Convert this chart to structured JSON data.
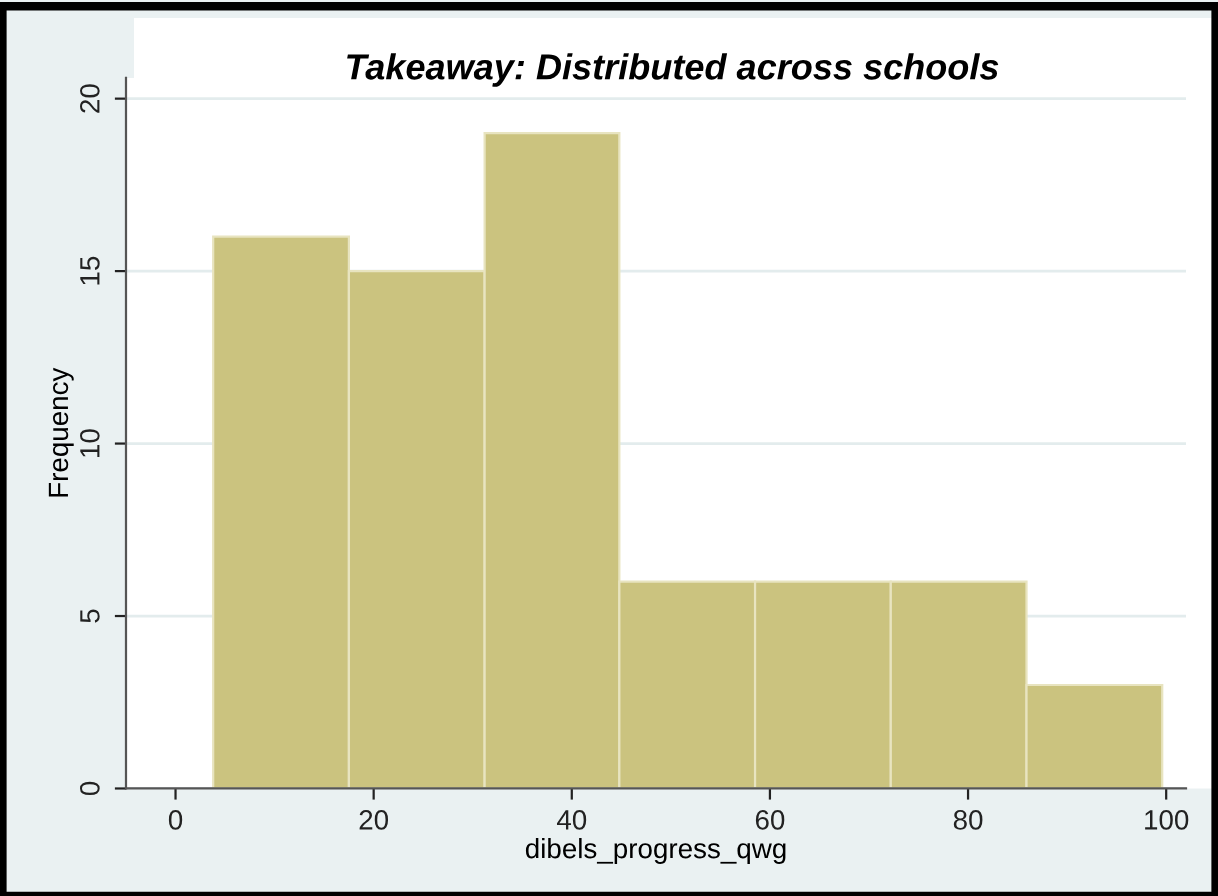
{
  "chart_data": {
    "type": "histogram",
    "title": "Takeaway: Distributed across schools",
    "xlabel": "dibels_progress_qwg",
    "ylabel": "Frequency",
    "bins": [
      3.8,
      17.5,
      31.2,
      44.8,
      58.5,
      72.2,
      85.9,
      99.6
    ],
    "values": [
      16,
      15,
      19,
      6,
      6,
      6,
      3
    ],
    "color": "#cbc37f",
    "xlim": [
      -5,
      102
    ],
    "xticks": [
      0,
      20,
      40,
      60,
      80,
      100
    ],
    "ylim": [
      0,
      20.6
    ],
    "yticks": [
      0,
      5,
      10,
      15,
      20
    ],
    "grid": "y"
  }
}
